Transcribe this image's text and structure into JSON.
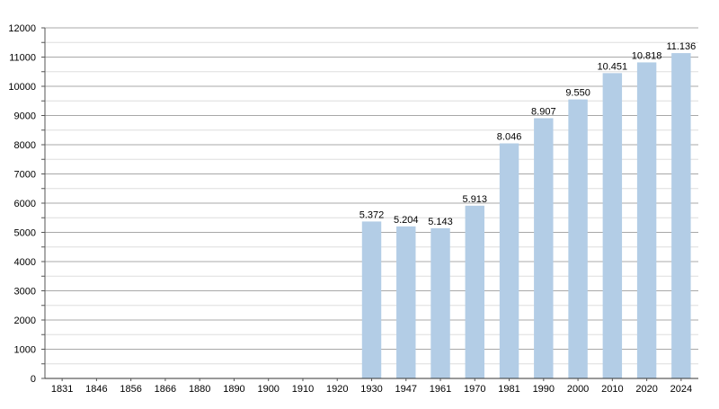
{
  "chart_data": {
    "type": "bar",
    "categories": [
      "1831",
      "1846",
      "1856",
      "1866",
      "1880",
      "1890",
      "1900",
      "1910",
      "1920",
      "1930",
      "1947",
      "1961",
      "1970",
      "1981",
      "1990",
      "2000",
      "2010",
      "2020",
      "2024"
    ],
    "values": [
      null,
      null,
      null,
      null,
      null,
      null,
      null,
      null,
      null,
      5372,
      5204,
      5143,
      5913,
      8046,
      8907,
      9550,
      10451,
      10818,
      11136
    ],
    "value_labels": [
      "",
      "",
      "",
      "",
      "",
      "",
      "",
      "",
      "",
      "5.372",
      "5.204",
      "5.143",
      "5.913",
      "8.046",
      "8.907",
      "9.550",
      "10.451",
      "10.818",
      "11.136"
    ],
    "ylim": [
      0,
      12000
    ],
    "yticks": [
      0,
      1000,
      2000,
      3000,
      4000,
      5000,
      6000,
      7000,
      8000,
      9000,
      10000,
      11000,
      12000
    ],
    "ytick_labels": [
      "0",
      "1000",
      "2000",
      "3000",
      "4000",
      "5000",
      "6000",
      "7000",
      "8000",
      "9000",
      "10000",
      "11000",
      "12000"
    ],
    "grid": true,
    "bar_color": "#b3cde6",
    "title": "",
    "xlabel": "",
    "ylabel": ""
  }
}
